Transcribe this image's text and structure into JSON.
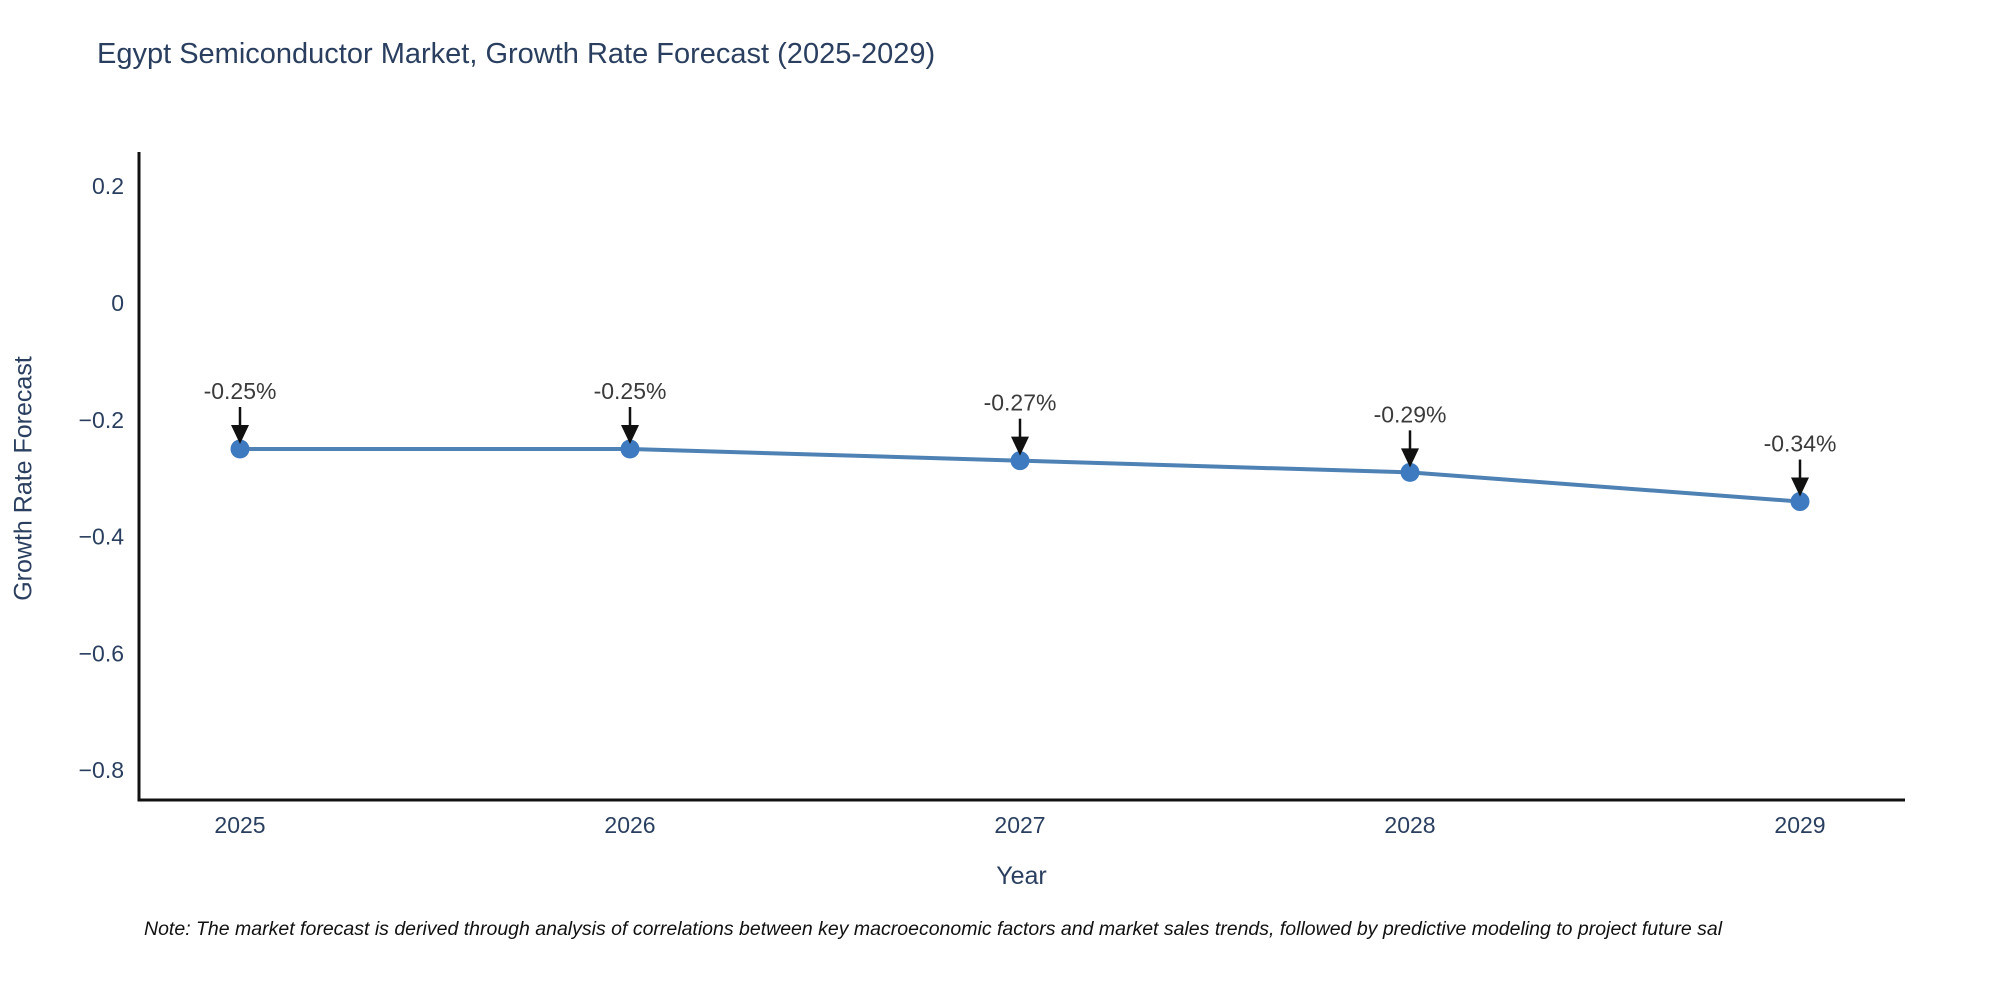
{
  "title": "Egypt Semiconductor Market, Growth Rate Forecast (2025-2029)",
  "footnote": "Note: The market forecast is derived through analysis of correlations between key macroeconomic factors and market sales trends, followed by predictive modeling to project future sal",
  "chart_data": {
    "type": "line",
    "title": "Egypt Semiconductor Market, Growth Rate Forecast (2025-2029)",
    "xlabel": "Year",
    "ylabel": "Growth Rate Forecast",
    "x": [
      "2025",
      "2026",
      "2027",
      "2028",
      "2029"
    ],
    "y": [
      -0.25,
      -0.25,
      -0.27,
      -0.29,
      -0.34
    ],
    "point_labels": [
      "-0.25%",
      "-0.25%",
      "-0.27%",
      "-0.29%",
      "-0.34%"
    ],
    "ytick_values": [
      0.2,
      0,
      -0.2,
      -0.4,
      -0.6,
      -0.8
    ],
    "ytick_labels": [
      "0.2",
      "0",
      "−0.2",
      "−0.4",
      "−0.6",
      "−0.8"
    ],
    "ylim": [
      -0.85,
      0.26
    ],
    "grid": false,
    "legend_position": "none",
    "annotation_style": "black down arrows from labels to markers",
    "colors": {
      "line": "#4e81b4",
      "marker": "#3d7ac0",
      "axis_spine": "#111111",
      "tick_text": "#2a3f5f",
      "title_text": "#2a3f5f",
      "annotation_text": "#3b3b3b",
      "arrow": "#111111",
      "background": "#ffffff"
    }
  }
}
